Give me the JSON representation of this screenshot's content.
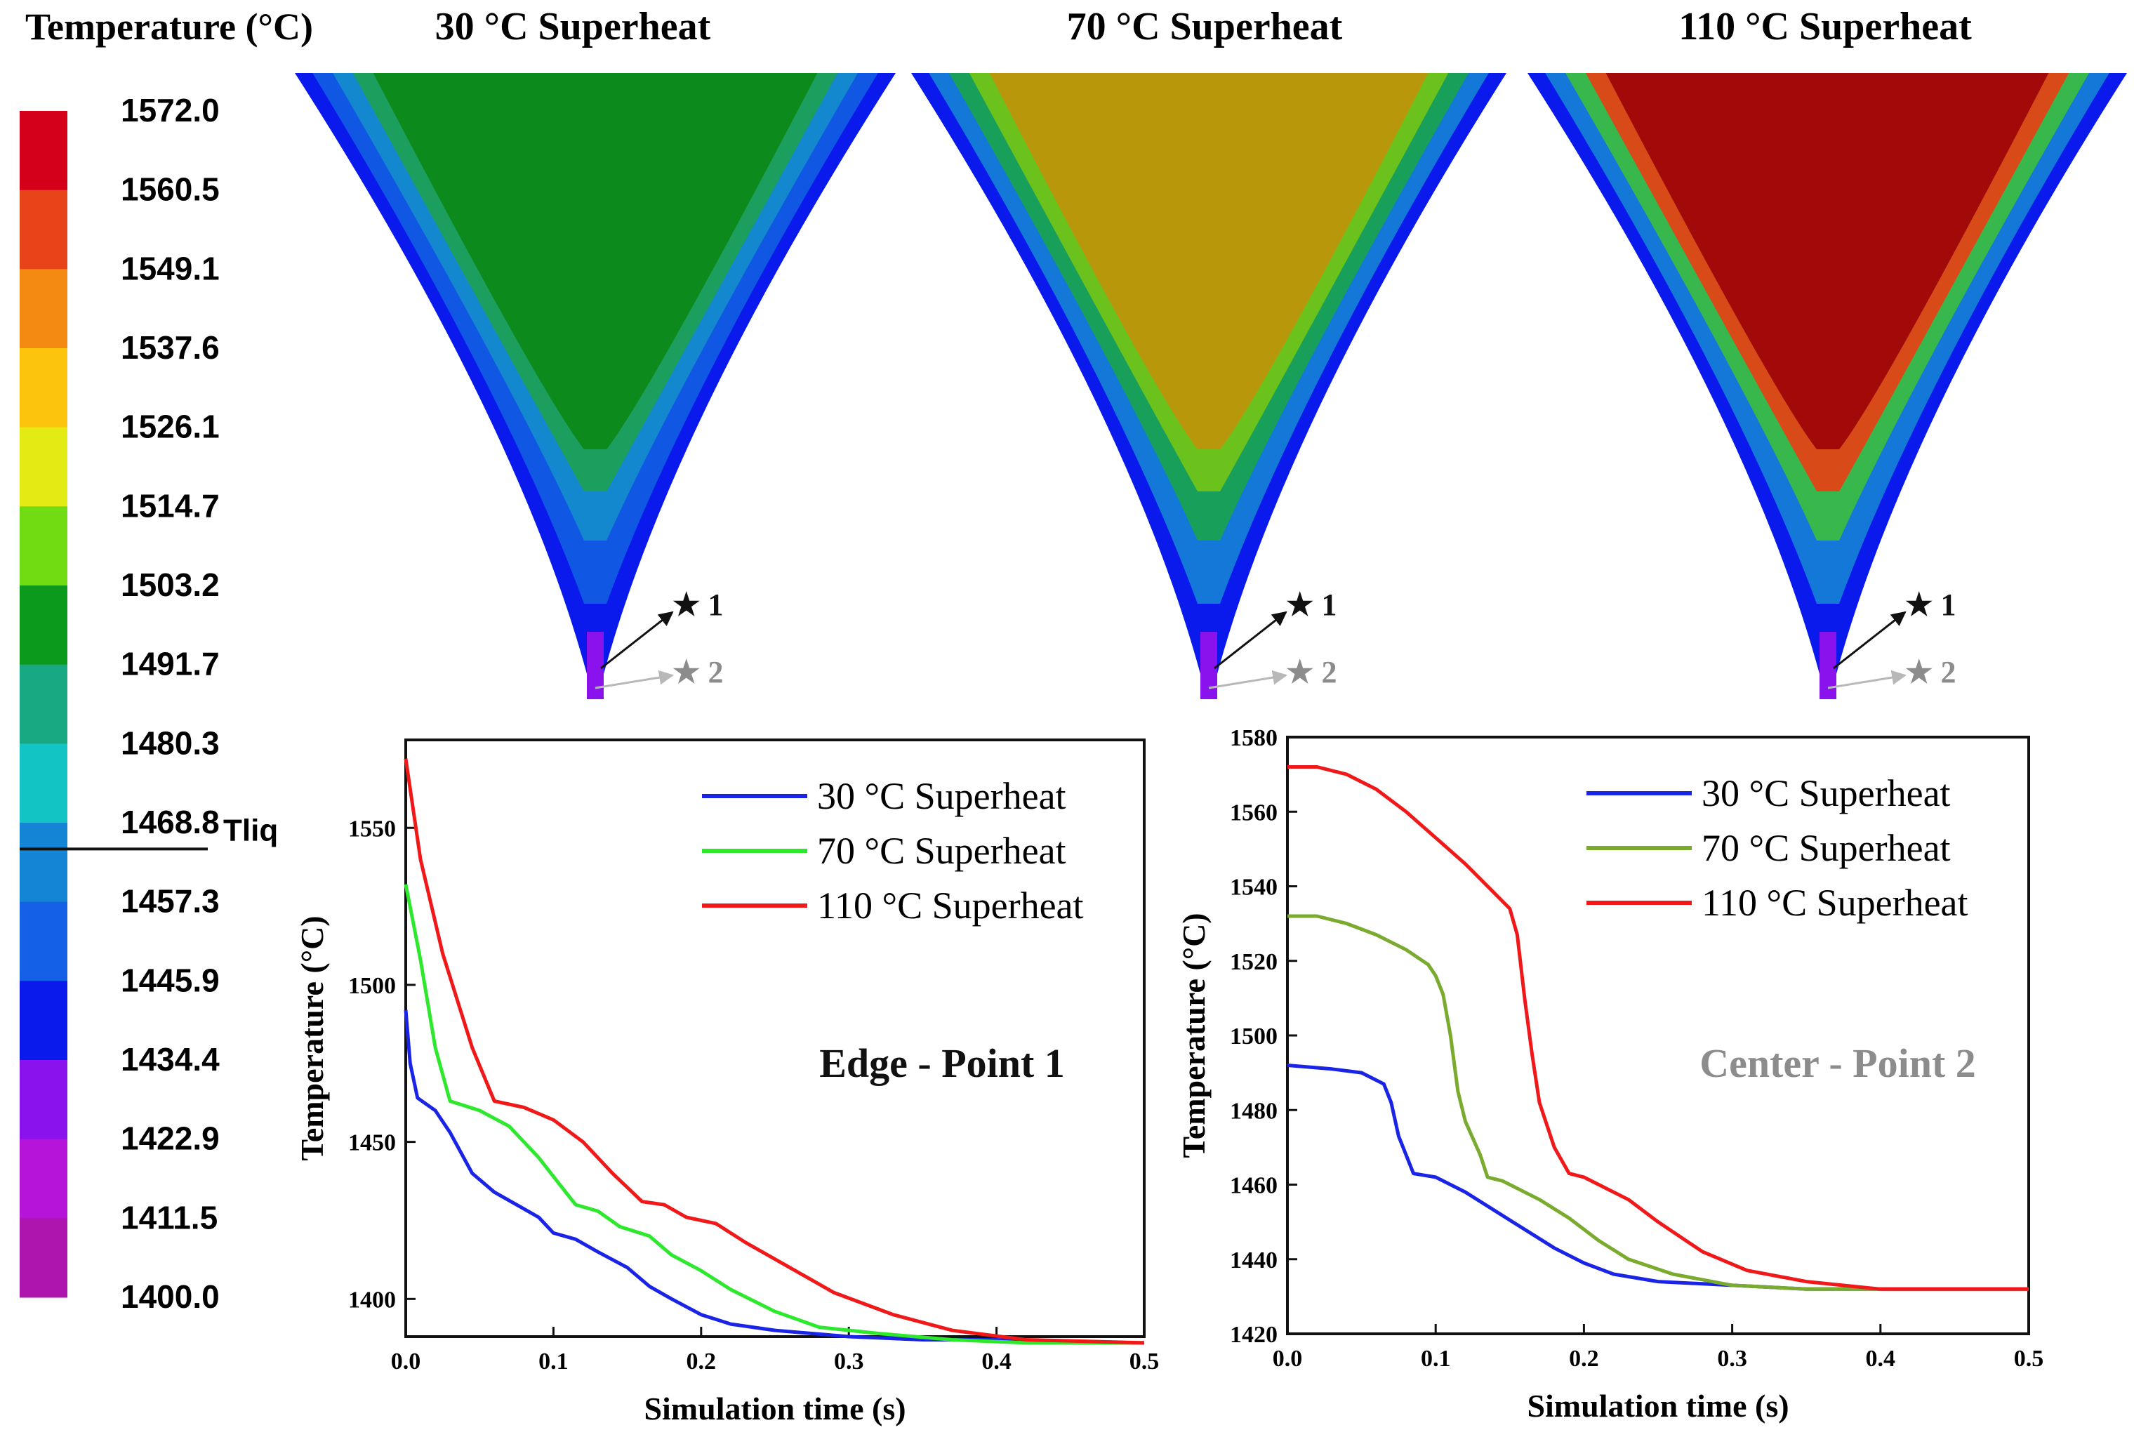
{
  "colorbar": {
    "title": "Temperature (°C)",
    "labels": [
      "1572.0",
      "1560.5",
      "1549.1",
      "1537.6",
      "1526.1",
      "1514.7",
      "1503.2",
      "1491.7",
      "1480.3",
      "1468.8",
      "1457.3",
      "1445.9",
      "1434.4",
      "1422.9",
      "1411.5",
      "1400.0"
    ],
    "colors": [
      "#d4001a",
      "#e8441a",
      "#f58a12",
      "#fcc40c",
      "#e2ec14",
      "#72dc12",
      "#0c9a1c",
      "#18a882",
      "#12c4c4",
      "#1484d4",
      "#1460e6",
      "#0a1aec",
      "#8a12ec",
      "#b614d8",
      "#ae14ae"
    ],
    "tliq_label": "Tliq",
    "tliq_value": 1465.0
  },
  "contours": [
    {
      "title": "30  °C Superheat",
      "core_color": "#0c8a1c",
      "layer_colors": [
        "#1c9e5e",
        "#1488ce",
        "#1058e4",
        "#0a1aec"
      ],
      "tip_color": "#8a12ec",
      "marker1": "★ 1",
      "marker2": "★ 2"
    },
    {
      "title": "70  °C Superheat",
      "core_color": "#b8980a",
      "layer_colors": [
        "#6cc21c",
        "#18a05a",
        "#1478d8",
        "#0a1aec"
      ],
      "tip_color": "#8a12ec",
      "marker1": "★ 1",
      "marker2": "★ 2"
    },
    {
      "title": "110 °C Superheat",
      "core_color": "#a20a0a",
      "layer_colors": [
        "#d84a18",
        "#38b84c",
        "#1478d8",
        "#0a1aec"
      ],
      "tip_color": "#8a12ec",
      "marker1": "★ 1",
      "marker2": "★ 2"
    }
  ],
  "colors": {
    "blue": "#1a24e6",
    "green_bright": "#2ee82e",
    "green_olive": "#7aaa2e",
    "red": "#f01818",
    "edge_label": "#111111",
    "center_label": "#8c8c8c"
  },
  "chart_data": [
    {
      "type": "line",
      "annotation": "Edge - Point 1",
      "xlabel": "Simulation time (s)",
      "ylabel": "Temperature (°C)",
      "xlim": [
        0,
        0.5
      ],
      "ylim": [
        1388,
        1578
      ],
      "xticks": [
        0.0,
        0.1,
        0.2,
        0.3,
        0.4,
        0.5
      ],
      "xtick_labels": [
        "0.0",
        "0.1",
        "0.2",
        "0.3",
        "0.4",
        "0.5"
      ],
      "yticks": [
        1400,
        1450,
        1500,
        1550
      ],
      "ytick_labels": [
        "1400",
        "1450",
        "1500",
        "1550"
      ],
      "legend": "top-right",
      "series": [
        {
          "name": "30 °C Superheat",
          "color": "#1a24e6",
          "points": [
            [
              0,
              1492
            ],
            [
              0.003,
              1475
            ],
            [
              0.008,
              1464
            ],
            [
              0.02,
              1460
            ],
            [
              0.03,
              1453
            ],
            [
              0.045,
              1440
            ],
            [
              0.06,
              1434
            ],
            [
              0.075,
              1430
            ],
            [
              0.09,
              1426
            ],
            [
              0.1,
              1421
            ],
            [
              0.115,
              1419
            ],
            [
              0.13,
              1415
            ],
            [
              0.15,
              1410
            ],
            [
              0.165,
              1404
            ],
            [
              0.18,
              1400
            ],
            [
              0.2,
              1395
            ],
            [
              0.22,
              1392
            ],
            [
              0.25,
              1390
            ],
            [
              0.3,
              1388
            ],
            [
              0.35,
              1387
            ],
            [
              0.4,
              1387
            ],
            [
              0.45,
              1386
            ],
            [
              0.5,
              1386
            ]
          ]
        },
        {
          "name": "70 °C Superheat",
          "color": "#2ee82e",
          "points": [
            [
              0,
              1532
            ],
            [
              0.01,
              1508
            ],
            [
              0.02,
              1480
            ],
            [
              0.03,
              1463
            ],
            [
              0.05,
              1460
            ],
            [
              0.07,
              1455
            ],
            [
              0.09,
              1445
            ],
            [
              0.105,
              1436
            ],
            [
              0.115,
              1430
            ],
            [
              0.13,
              1428
            ],
            [
              0.145,
              1423
            ],
            [
              0.165,
              1420
            ],
            [
              0.18,
              1414
            ],
            [
              0.2,
              1409
            ],
            [
              0.22,
              1403
            ],
            [
              0.25,
              1396
            ],
            [
              0.28,
              1391
            ],
            [
              0.32,
              1389
            ],
            [
              0.37,
              1387
            ],
            [
              0.42,
              1386
            ],
            [
              0.5,
              1386
            ]
          ]
        },
        {
          "name": "110 °C Superheat",
          "color": "#f01818",
          "points": [
            [
              0,
              1572
            ],
            [
              0.01,
              1540
            ],
            [
              0.025,
              1510
            ],
            [
              0.045,
              1480
            ],
            [
              0.06,
              1463
            ],
            [
              0.08,
              1461
            ],
            [
              0.1,
              1457
            ],
            [
              0.12,
              1450
            ],
            [
              0.14,
              1440
            ],
            [
              0.16,
              1431
            ],
            [
              0.175,
              1430
            ],
            [
              0.19,
              1426
            ],
            [
              0.21,
              1424
            ],
            [
              0.23,
              1418
            ],
            [
              0.26,
              1410
            ],
            [
              0.29,
              1402
            ],
            [
              0.33,
              1395
            ],
            [
              0.37,
              1390
            ],
            [
              0.42,
              1387
            ],
            [
              0.5,
              1386
            ]
          ]
        }
      ]
    },
    {
      "type": "line",
      "annotation": "Center - Point 2",
      "xlabel": "Simulation time (s)",
      "ylabel": "Temperature (°C)",
      "xlim": [
        0,
        0.5
      ],
      "ylim": [
        1420,
        1580
      ],
      "xticks": [
        0.0,
        0.1,
        0.2,
        0.3,
        0.4,
        0.5
      ],
      "xtick_labels": [
        "0.0",
        "0.1",
        "0.2",
        "0.3",
        "0.4",
        "0.5"
      ],
      "yticks": [
        1420,
        1440,
        1460,
        1480,
        1500,
        1520,
        1540,
        1560,
        1580
      ],
      "ytick_labels": [
        "1420",
        "1440",
        "1460",
        "1480",
        "1500",
        "1520",
        "1540",
        "1560",
        "1580"
      ],
      "legend": "top-right",
      "series": [
        {
          "name": "30 °C Superheat",
          "color": "#1a24e6",
          "points": [
            [
              0,
              1492
            ],
            [
              0.03,
              1491
            ],
            [
              0.05,
              1490
            ],
            [
              0.065,
              1487
            ],
            [
              0.07,
              1482
            ],
            [
              0.075,
              1473
            ],
            [
              0.08,
              1468
            ],
            [
              0.085,
              1463
            ],
            [
              0.1,
              1462
            ],
            [
              0.12,
              1458
            ],
            [
              0.14,
              1453
            ],
            [
              0.16,
              1448
            ],
            [
              0.18,
              1443
            ],
            [
              0.2,
              1439
            ],
            [
              0.22,
              1436
            ],
            [
              0.25,
              1434
            ],
            [
              0.3,
              1433
            ],
            [
              0.35,
              1432
            ],
            [
              0.5,
              1432
            ]
          ]
        },
        {
          "name": "70 °C Superheat",
          "color": "#7aaa2e",
          "points": [
            [
              0,
              1532
            ],
            [
              0.02,
              1532
            ],
            [
              0.04,
              1530
            ],
            [
              0.06,
              1527
            ],
            [
              0.08,
              1523
            ],
            [
              0.095,
              1519
            ],
            [
              0.1,
              1516
            ],
            [
              0.105,
              1511
            ],
            [
              0.11,
              1500
            ],
            [
              0.115,
              1485
            ],
            [
              0.12,
              1477
            ],
            [
              0.13,
              1468
            ],
            [
              0.135,
              1462
            ],
            [
              0.145,
              1461
            ],
            [
              0.155,
              1459
            ],
            [
              0.17,
              1456
            ],
            [
              0.19,
              1451
            ],
            [
              0.21,
              1445
            ],
            [
              0.23,
              1440
            ],
            [
              0.26,
              1436
            ],
            [
              0.3,
              1433
            ],
            [
              0.35,
              1432
            ],
            [
              0.5,
              1432
            ]
          ]
        },
        {
          "name": "110 °C Superheat",
          "color": "#f01818",
          "points": [
            [
              0,
              1572
            ],
            [
              0.02,
              1572
            ],
            [
              0.04,
              1570
            ],
            [
              0.06,
              1566
            ],
            [
              0.08,
              1560
            ],
            [
              0.1,
              1553
            ],
            [
              0.12,
              1546
            ],
            [
              0.14,
              1538
            ],
            [
              0.15,
              1534
            ],
            [
              0.155,
              1527
            ],
            [
              0.16,
              1510
            ],
            [
              0.165,
              1495
            ],
            [
              0.17,
              1482
            ],
            [
              0.18,
              1470
            ],
            [
              0.19,
              1463
            ],
            [
              0.2,
              1462
            ],
            [
              0.21,
              1460
            ],
            [
              0.23,
              1456
            ],
            [
              0.25,
              1450
            ],
            [
              0.28,
              1442
            ],
            [
              0.31,
              1437
            ],
            [
              0.35,
              1434
            ],
            [
              0.4,
              1432
            ],
            [
              0.5,
              1432
            ]
          ]
        }
      ]
    }
  ]
}
